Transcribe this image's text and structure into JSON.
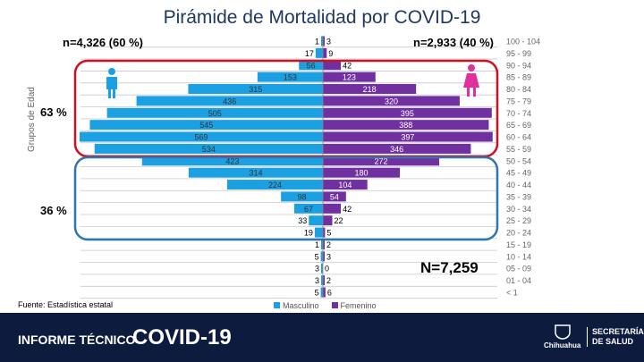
{
  "chart_data": {
    "type": "bar",
    "title": "Pirámide de Mortalidad por COVID-19",
    "ylabel": "Grupos de Edad",
    "categories": [
      "100 - 104",
      "95 - 99",
      "90 - 94",
      "85 - 89",
      "80 - 84",
      "75 - 79",
      "70 - 74",
      "65 - 69",
      "60 - 64",
      "55 - 59",
      "50 - 54",
      "45 - 49",
      "40 - 44",
      "35 - 39",
      "30 - 34",
      "25 - 29",
      "20 - 24",
      "15 - 19",
      "10 - 14",
      "05 - 09",
      "01 - 04",
      "< 1"
    ],
    "series": [
      {
        "name": "Masculino",
        "color": "#1ba1e2",
        "values": [
          1,
          17,
          56,
          153,
          315,
          436,
          505,
          545,
          569,
          534,
          423,
          314,
          224,
          98,
          67,
          33,
          19,
          1,
          5,
          3,
          3,
          5
        ]
      },
      {
        "name": "Femenino",
        "color": "#7030a0",
        "values": [
          3,
          9,
          42,
          123,
          218,
          320,
          395,
          388,
          397,
          346,
          272,
          180,
          104,
          54,
          42,
          22,
          5,
          2,
          3,
          0,
          2,
          6
        ]
      }
    ],
    "legend_position": "bottom",
    "annotations": {
      "male_total": "n=4,326 (60 %)",
      "female_total": "n=2,933 (40 %)",
      "total": "N=7,259",
      "red_group_pct": "63 %",
      "blue_group_pct": "36 %"
    }
  },
  "footer": {
    "source": "Fuente: Estadística estatal",
    "banner_left": "INFORME TÉCNICO",
    "banner_title": "COVID-19",
    "logo": "Chihuahua",
    "secretaria": "SECRETARÍA",
    "salud": "DE SALUD"
  },
  "colors": {
    "red_box": "#d0101e",
    "blue_box": "#2e75b6",
    "banner": "#0d1b3e",
    "female_icon": "#e0309a",
    "male_icon": "#1ba1e2"
  }
}
